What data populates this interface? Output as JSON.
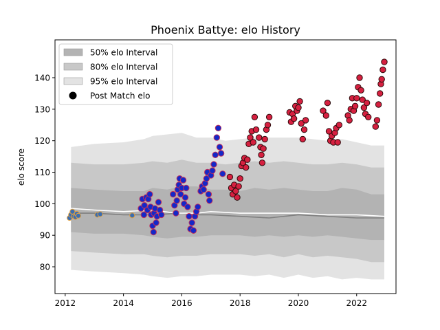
{
  "chart_data": {
    "type": "scatter",
    "title": "Phoenix Battye: elo History",
    "xlabel": "",
    "ylabel": "elo score",
    "xlim": [
      2011.65,
      2023.35
    ],
    "ylim": [
      71.5,
      152
    ],
    "xticks": [
      2012,
      2014,
      2016,
      2018,
      2020,
      2022
    ],
    "yticks": [
      80,
      90,
      100,
      110,
      120,
      130,
      140
    ],
    "grid": false,
    "legend_position": "top-left",
    "legend": [
      {
        "label": "50% elo Interval",
        "kind": "band",
        "color": "#b3b3b3"
      },
      {
        "label": "80% elo Interval",
        "kind": "band",
        "color": "#c8c8c8"
      },
      {
        "label": "95% elo Interval",
        "kind": "band",
        "color": "#e3e3e3"
      },
      {
        "label": "Post Match elo",
        "kind": "marker",
        "color": "#000000"
      }
    ],
    "bands": {
      "x": [
        2012.2,
        2013.0,
        2014.0,
        2014.7,
        2015.0,
        2015.5,
        2016.0,
        2016.5,
        2017.0,
        2017.5,
        2018.0,
        2018.5,
        2019.0,
        2019.5,
        2020.0,
        2020.5,
        2021.0,
        2021.5,
        2022.0,
        2022.5,
        2022.95
      ],
      "p50_low": [
        91,
        90.5,
        90.5,
        90,
        89.5,
        89,
        89.5,
        89.5,
        90,
        90,
        90,
        89.5,
        90,
        89.5,
        90,
        89.5,
        90,
        89.5,
        89,
        88.5,
        88.5
      ],
      "p50_high": [
        105,
        104.5,
        104,
        104,
        105,
        104.5,
        105.5,
        105.5,
        104.5,
        104.5,
        104,
        105,
        104.5,
        105,
        104.5,
        104,
        104,
        105,
        104.5,
        103,
        103
      ],
      "p80_low": [
        85,
        84.5,
        84,
        84,
        83.5,
        83,
        83.5,
        83.5,
        84,
        84,
        84,
        83.5,
        84,
        83,
        84,
        83,
        83.5,
        83,
        82.5,
        81.5,
        81.5
      ],
      "p80_high": [
        113,
        112.5,
        112.5,
        113,
        113.5,
        113,
        114,
        113,
        113,
        112.5,
        113,
        113.5,
        113,
        113.5,
        113,
        112.5,
        112.5,
        113,
        112.5,
        111.5,
        111.5
      ],
      "p95_low": [
        79,
        78.5,
        78,
        77.5,
        77,
        76.5,
        77,
        77,
        77.5,
        77.5,
        77.5,
        77,
        77.5,
        76.5,
        77.5,
        76.5,
        77,
        76,
        76.5,
        76,
        76
      ],
      "p95_high": [
        118,
        119,
        119.5,
        120.5,
        121.5,
        122,
        122.5,
        121,
        121,
        120,
        120.5,
        121,
        121,
        121,
        121,
        120.5,
        120,
        120.5,
        119.5,
        118.5,
        118.5
      ]
    },
    "median_line": {
      "color": "#808080",
      "x": [
        2012.2,
        2013.0,
        2014.0,
        2015.0,
        2016.0,
        2016.6,
        2017.0,
        2018.0,
        2019.0,
        2020.0,
        2021.0,
        2022.0,
        2022.95
      ],
      "y": [
        97,
        97,
        96.5,
        96.5,
        97,
        96.5,
        96.5,
        96,
        95.5,
        96.5,
        96,
        95.5,
        95.5
      ]
    },
    "mean_line": {
      "color": "#ffffff",
      "x": [
        2012.2,
        2013.0,
        2014.0,
        2015.0,
        2015.8,
        2016.5,
        2017.0,
        2018.0,
        2019.0,
        2020.0,
        2021.0,
        2022.0,
        2022.95
      ],
      "y": [
        98.5,
        98,
        97.5,
        98,
        97,
        97,
        97.5,
        97,
        97,
        97,
        96.5,
        96.5,
        96
      ]
    },
    "series": [
      {
        "fill": "#3b6db0",
        "edge": "#e0a040",
        "points": [
          [
            2012.15,
            95.5
          ],
          [
            2012.2,
            96.5
          ],
          [
            2012.25,
            97.5
          ],
          [
            2012.3,
            96.0
          ],
          [
            2012.35,
            95.8
          ],
          [
            2012.4,
            96.8
          ],
          [
            2012.45,
            96.2
          ],
          [
            2013.1,
            96.5
          ],
          [
            2013.2,
            96.7
          ],
          [
            2014.3,
            96.3
          ]
        ]
      },
      {
        "fill": "#1428c8",
        "edge": "#c0305a",
        "points": [
          [
            2014.6,
            98.5
          ],
          [
            2014.65,
            101.5
          ],
          [
            2014.7,
            96.5
          ],
          [
            2014.72,
            99.5
          ],
          [
            2014.78,
            102
          ],
          [
            2014.82,
            98
          ],
          [
            2014.85,
            101.5
          ],
          [
            2014.9,
            103
          ],
          [
            2014.93,
            99
          ],
          [
            2014.95,
            96.5
          ],
          [
            2015.0,
            93
          ],
          [
            2015.03,
            91
          ],
          [
            2015.05,
            97
          ],
          [
            2015.08,
            98.5
          ],
          [
            2015.12,
            94
          ],
          [
            2015.15,
            96
          ],
          [
            2015.2,
            100.5
          ],
          [
            2015.25,
            98
          ],
          [
            2015.3,
            96.5
          ],
          [
            2015.7,
            103
          ],
          [
            2015.75,
            99.5
          ],
          [
            2015.8,
            97
          ],
          [
            2015.83,
            101
          ],
          [
            2015.86,
            104.5
          ],
          [
            2015.9,
            106
          ],
          [
            2015.93,
            108
          ],
          [
            2015.96,
            103
          ],
          [
            2016.0,
            105
          ],
          [
            2016.05,
            107.5
          ],
          [
            2016.08,
            100
          ],
          [
            2016.12,
            102
          ],
          [
            2016.15,
            105
          ],
          [
            2016.2,
            99
          ],
          [
            2016.25,
            96
          ],
          [
            2016.3,
            92
          ],
          [
            2016.35,
            94
          ],
          [
            2016.4,
            91.5
          ],
          [
            2016.45,
            96
          ],
          [
            2016.5,
            97.5
          ],
          [
            2016.55,
            99
          ],
          [
            2016.65,
            104
          ],
          [
            2016.7,
            105.5
          ],
          [
            2016.75,
            104.5
          ],
          [
            2016.8,
            106.5
          ],
          [
            2016.85,
            108
          ],
          [
            2016.88,
            110
          ],
          [
            2016.92,
            103
          ],
          [
            2016.95,
            101
          ],
          [
            2017.0,
            109
          ],
          [
            2017.05,
            110.5
          ],
          [
            2017.1,
            112.5
          ],
          [
            2017.15,
            115.5
          ],
          [
            2017.2,
            121
          ],
          [
            2017.25,
            124
          ],
          [
            2017.3,
            118
          ],
          [
            2017.35,
            116
          ],
          [
            2017.4,
            109.5
          ]
        ]
      },
      {
        "fill": "#d62040",
        "edge": "#2a0a0a",
        "points": [
          [
            2017.65,
            108.5
          ],
          [
            2017.7,
            105
          ],
          [
            2017.75,
            103
          ],
          [
            2017.8,
            106
          ],
          [
            2017.85,
            104
          ],
          [
            2017.9,
            102
          ],
          [
            2017.95,
            105.5
          ],
          [
            2018.0,
            108
          ],
          [
            2018.05,
            112
          ],
          [
            2018.1,
            113
          ],
          [
            2018.15,
            114.5
          ],
          [
            2018.2,
            111.5
          ],
          [
            2018.25,
            114
          ],
          [
            2018.3,
            119
          ],
          [
            2018.35,
            121
          ],
          [
            2018.4,
            123
          ],
          [
            2018.45,
            119.5
          ],
          [
            2018.5,
            127.5
          ],
          [
            2018.55,
            123.5
          ],
          [
            2018.65,
            121
          ],
          [
            2018.7,
            118
          ],
          [
            2018.73,
            115.5
          ],
          [
            2018.76,
            113
          ],
          [
            2018.8,
            117.5
          ],
          [
            2018.85,
            120.5
          ],
          [
            2018.9,
            123.5
          ],
          [
            2018.95,
            125
          ],
          [
            2019.0,
            127.5
          ],
          [
            2019.7,
            129
          ],
          [
            2019.75,
            126
          ],
          [
            2019.8,
            128.5
          ],
          [
            2019.85,
            127
          ],
          [
            2019.9,
            131
          ],
          [
            2019.95,
            129.5
          ],
          [
            2020.0,
            130.5
          ],
          [
            2020.05,
            132.5
          ],
          [
            2020.1,
            125.5
          ],
          [
            2020.15,
            120.5
          ],
          [
            2020.2,
            123.5
          ],
          [
            2020.25,
            126.5
          ],
          [
            2020.85,
            129.5
          ],
          [
            2020.95,
            128
          ],
          [
            2021.0,
            132
          ],
          [
            2021.05,
            123
          ],
          [
            2021.1,
            120
          ],
          [
            2021.15,
            121.5
          ],
          [
            2021.2,
            119.5
          ],
          [
            2021.25,
            122.5
          ],
          [
            2021.3,
            124
          ],
          [
            2021.35,
            119.5
          ],
          [
            2021.4,
            125
          ],
          [
            2021.7,
            128
          ],
          [
            2021.75,
            126.5
          ],
          [
            2021.8,
            130
          ],
          [
            2021.85,
            133.5
          ],
          [
            2021.9,
            129.5
          ],
          [
            2021.95,
            131
          ],
          [
            2022.0,
            133.5
          ],
          [
            2022.05,
            137
          ],
          [
            2022.1,
            140
          ],
          [
            2022.15,
            136
          ],
          [
            2022.2,
            133
          ],
          [
            2022.25,
            130.5
          ],
          [
            2022.3,
            128.5
          ],
          [
            2022.35,
            132
          ],
          [
            2022.4,
            127.5
          ],
          [
            2022.65,
            124.5
          ],
          [
            2022.7,
            126.5
          ],
          [
            2022.75,
            131.5
          ],
          [
            2022.8,
            135
          ],
          [
            2022.83,
            138
          ],
          [
            2022.86,
            139.5
          ],
          [
            2022.9,
            142.5
          ],
          [
            2022.95,
            145
          ]
        ]
      }
    ]
  }
}
